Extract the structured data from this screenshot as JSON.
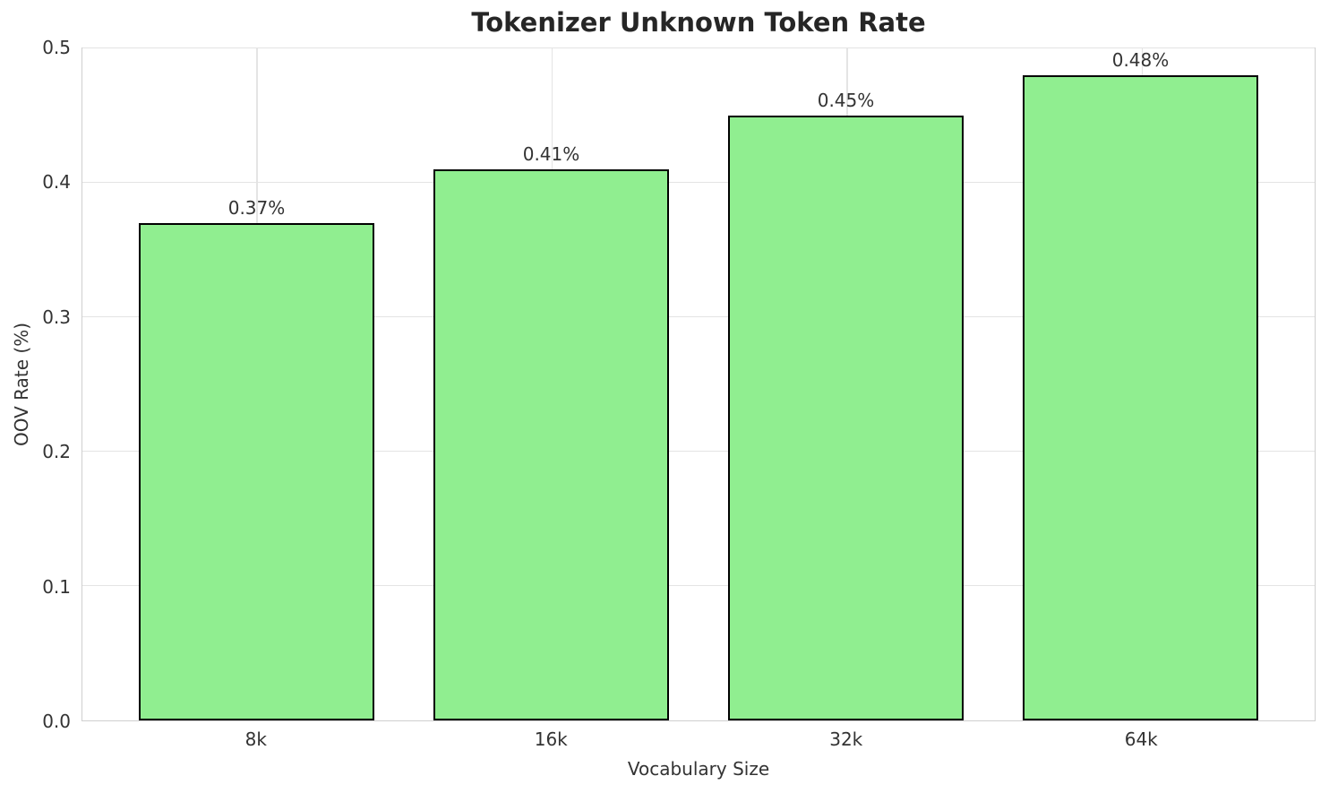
{
  "chart_data": {
    "type": "bar",
    "title": "Tokenizer Unknown Token Rate",
    "xlabel": "Vocabulary Size",
    "ylabel": "OOV Rate (%)",
    "categories": [
      "8k",
      "16k",
      "32k",
      "64k"
    ],
    "values": [
      0.37,
      0.41,
      0.45,
      0.48
    ],
    "bar_labels": [
      "0.37%",
      "0.41%",
      "0.45%",
      "0.48%"
    ],
    "ylim": [
      0.0,
      0.5
    ],
    "yticks": [
      0.0,
      0.1,
      0.2,
      0.3,
      0.4,
      0.5
    ],
    "ytick_labels": [
      "0.0",
      "0.1",
      "0.2",
      "0.3",
      "0.4",
      "0.5"
    ],
    "grid": true,
    "legend": null,
    "colors": {
      "bar_fill": "#90EE90",
      "bar_edge": "#000000",
      "grid": "#e4e4e4",
      "spine": "#cfcfcf",
      "text": "#333333",
      "title": "#262626",
      "background": "#ffffff"
    }
  }
}
